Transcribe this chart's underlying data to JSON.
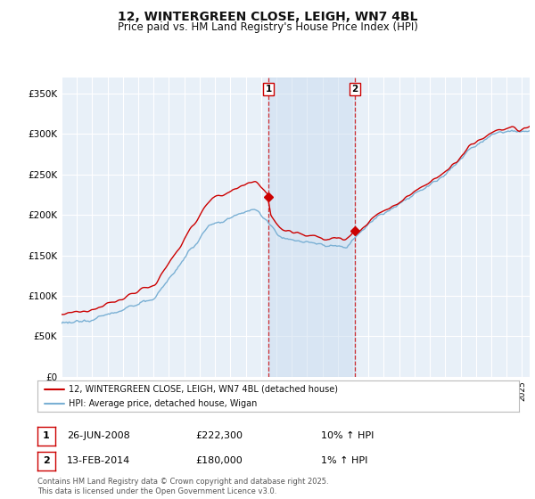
{
  "title": "12, WINTERGREEN CLOSE, LEIGH, WN7 4BL",
  "subtitle": "Price paid vs. HM Land Registry's House Price Index (HPI)",
  "title_fontsize": 10,
  "subtitle_fontsize": 8.5,
  "yticks": [
    0,
    50000,
    100000,
    150000,
    200000,
    250000,
    300000,
    350000
  ],
  "ytick_labels": [
    "£0",
    "£50K",
    "£100K",
    "£150K",
    "£200K",
    "£250K",
    "£300K",
    "£350K"
  ],
  "ylim": [
    0,
    370000
  ],
  "xlim_start": 1995.0,
  "xlim_end": 2025.5,
  "sale1_date": 2008.48,
  "sale1_price": 222300,
  "sale2_date": 2014.12,
  "sale2_price": 180000,
  "hpi_color": "#7ab0d4",
  "price_color": "#cc0000",
  "background_color": "#e8f0f8",
  "grid_color": "#ffffff",
  "span_color": "#c5d9ed",
  "legend_entry1": "12, WINTERGREEN CLOSE, LEIGH, WN7 4BL (detached house)",
  "legend_entry2": "HPI: Average price, detached house, Wigan",
  "annotation1_date": "26-JUN-2008",
  "annotation1_price": "£222,300",
  "annotation1_hpi": "10% ↑ HPI",
  "annotation2_date": "13-FEB-2014",
  "annotation2_price": "£180,000",
  "annotation2_hpi": "1% ↑ HPI",
  "footer": "Contains HM Land Registry data © Crown copyright and database right 2025.\nThis data is licensed under the Open Government Licence v3.0."
}
